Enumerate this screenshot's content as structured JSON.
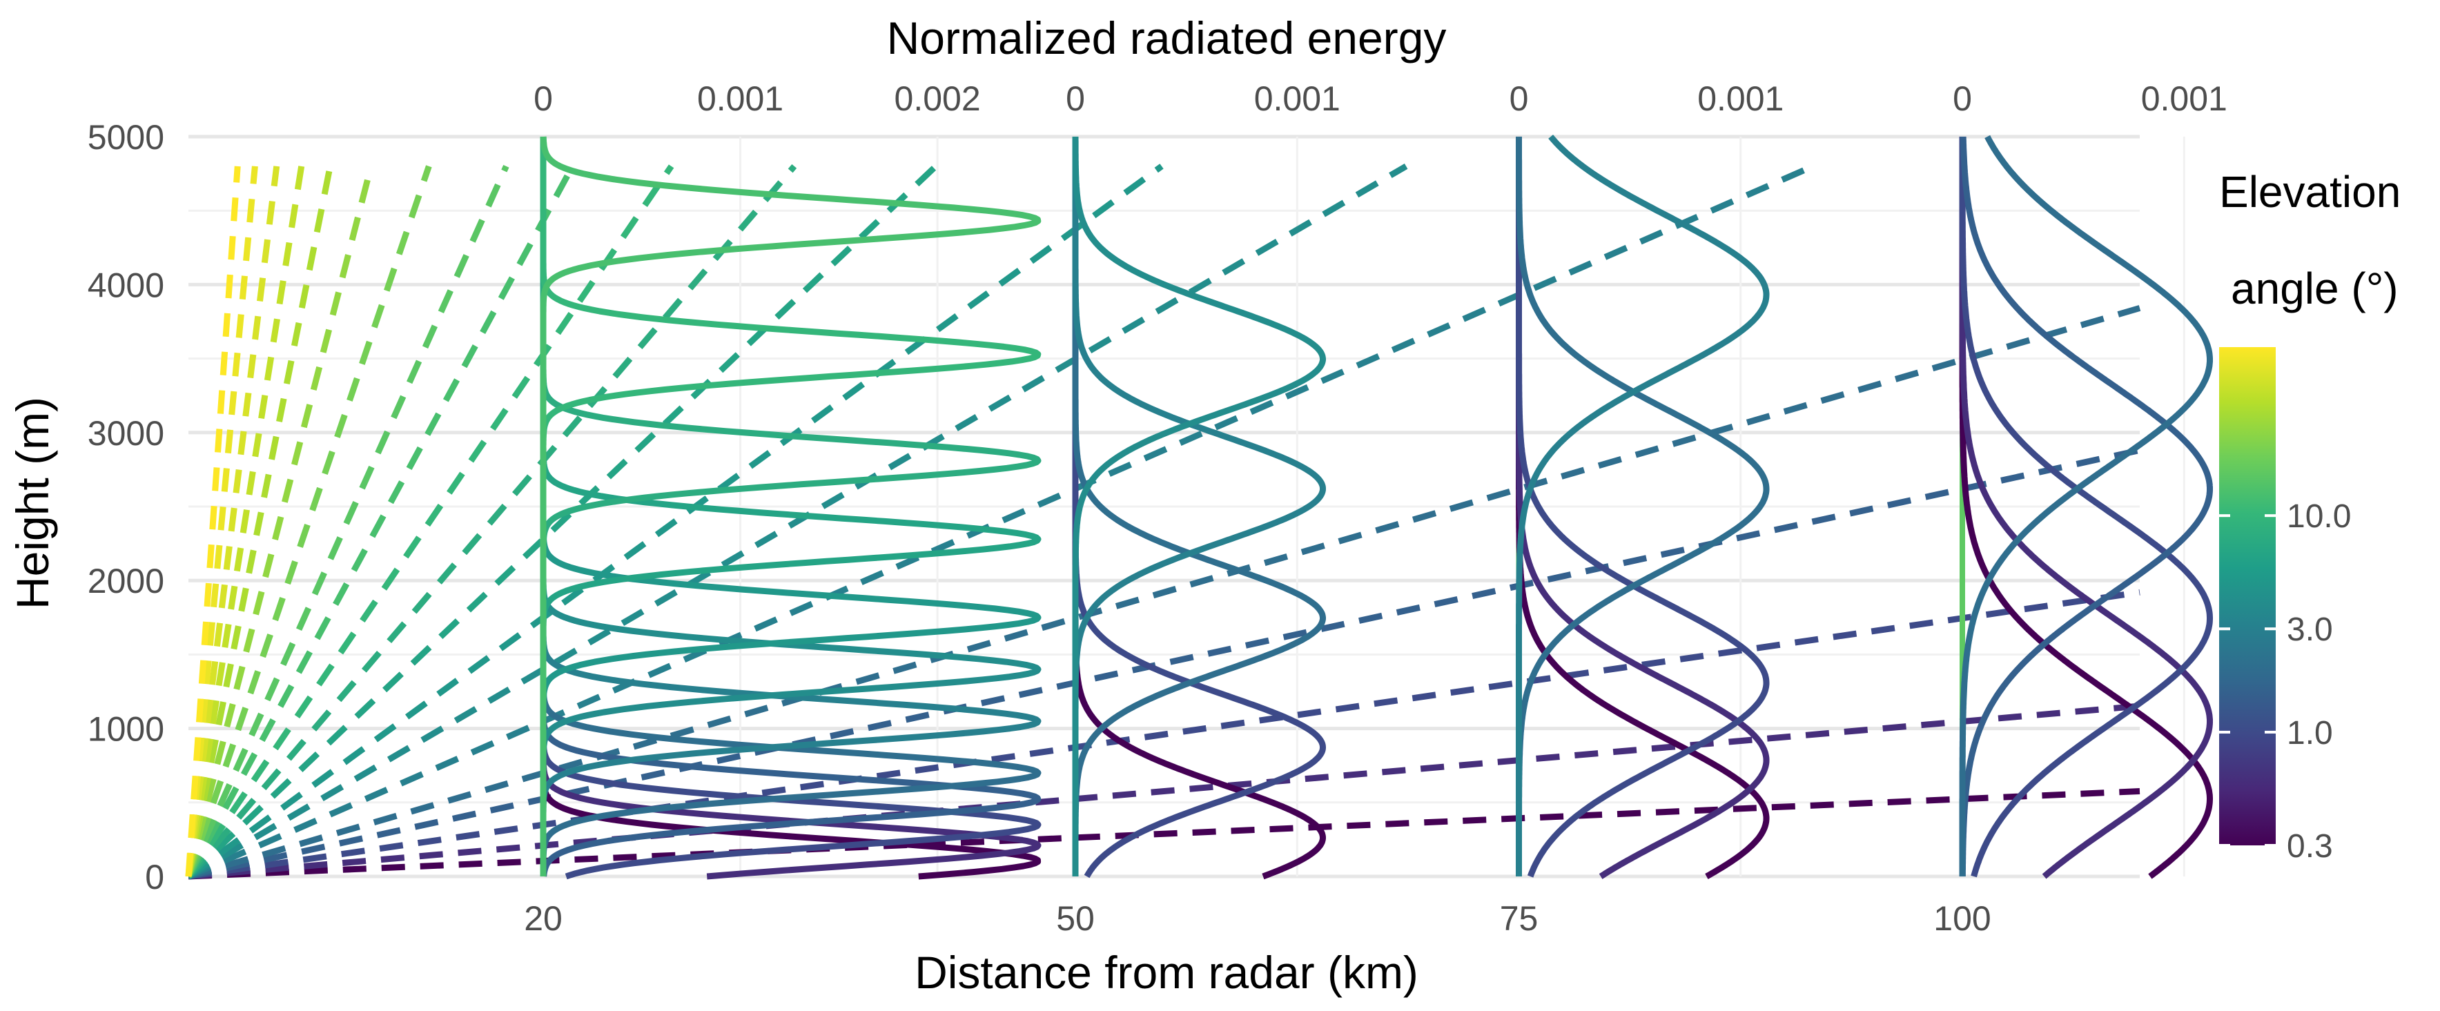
{
  "chart_data": {
    "type": "line",
    "title": "Normalized radiated energy",
    "xlabel": "Distance from radar (km)",
    "ylabel": "Height (m)",
    "xlim": [
      0,
      110
    ],
    "ylim": [
      0,
      5000
    ],
    "x_ticks": [
      20,
      50,
      75,
      100
    ],
    "y_ticks": [
      0,
      1000,
      2000,
      3000,
      4000,
      5000
    ],
    "grid": true,
    "energy_axes": [
      {
        "at_km": 20,
        "max_energy": 0.0027,
        "width_km": 30,
        "ticks": [
          {
            "v": 0,
            "label": "0"
          },
          {
            "v": 0.001,
            "label": "0.001"
          },
          {
            "v": 0.002,
            "label": "0.002"
          }
        ]
      },
      {
        "at_km": 50,
        "max_energy": 0.0012,
        "width_km": 15,
        "ticks": [
          {
            "v": 0,
            "label": "0"
          },
          {
            "v": 0.001,
            "label": "0.001"
          }
        ]
      },
      {
        "at_km": 75,
        "max_energy": 0.0012,
        "width_km": 15,
        "ticks": [
          {
            "v": 0,
            "label": "0"
          },
          {
            "v": 0.001,
            "label": "0.001"
          }
        ]
      },
      {
        "at_km": 100,
        "max_energy": 0.0012,
        "width_km": 15,
        "ticks": [
          {
            "v": 0,
            "label": "0"
          },
          {
            "v": 0.001,
            "label": "0.001"
          }
        ]
      }
    ],
    "elevation_angles_deg": [
      0.3,
      0.6,
      1.0,
      1.5,
      2.0,
      3.0,
      4.0,
      5.0,
      6.5,
      8.0,
      10.0,
      12.5,
      15.0,
      19.5,
      25.0,
      31.0,
      37.0,
      44.0,
      52.0,
      60.0
    ],
    "beam_series": [
      {
        "distance_km": 20,
        "elevations": [
          0.3,
          0.6,
          1.0,
          1.5,
          2.0,
          3.0,
          4.0,
          5.0,
          6.5,
          8.0,
          10.0,
          12.5
        ]
      },
      {
        "distance_km": 50,
        "elevations": [
          0.3,
          1.0,
          2.0,
          3.0,
          4.0
        ]
      },
      {
        "distance_km": 75,
        "elevations": [
          0.3,
          0.6,
          1.0,
          2.0,
          3.0
        ]
      },
      {
        "distance_km": 100,
        "elevations": [
          0.3,
          0.6,
          1.0,
          1.5,
          2.0
        ]
      }
    ],
    "beam_width_deg": 0.95,
    "legend": {
      "title_line1": "Elevation",
      "title_line2": "angle (°)",
      "position": "right",
      "scale": "log",
      "range": [
        0.3,
        60.0
      ],
      "ticks": [
        {
          "v": 0.3,
          "label": "0.3"
        },
        {
          "v": 1.0,
          "label": "1.0"
        },
        {
          "v": 3.0,
          "label": "3.0"
        },
        {
          "v": 10.0,
          "label": "10.0"
        }
      ]
    },
    "colors": {
      "viridis": [
        "#440154",
        "#482878",
        "#3e4989",
        "#31688e",
        "#26828e",
        "#1f9e89",
        "#35b779",
        "#6ece58",
        "#b5de2b",
        "#fde725"
      ],
      "grid_major": "#e6e6e6",
      "grid_minor": "#f1f1f1",
      "text": "#4d4d4d",
      "title_text": "#000000"
    }
  }
}
